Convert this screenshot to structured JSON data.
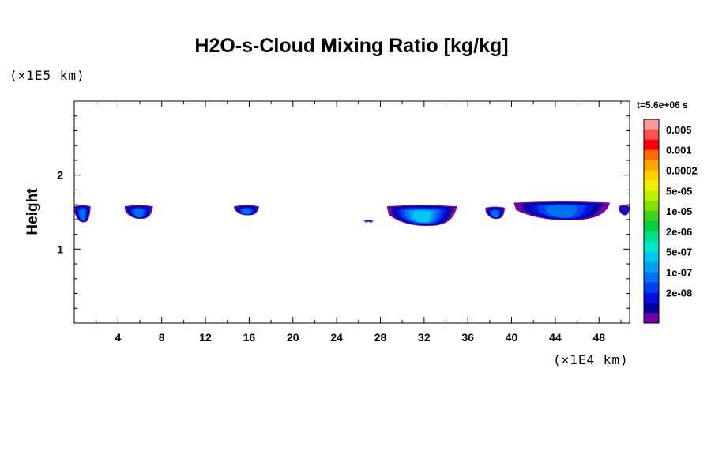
{
  "chart_data": {
    "type": "heatmap",
    "title": "H2O-s-Cloud Mixing Ratio [kg/kg]",
    "ylabel": "Height",
    "xlabel": "",
    "x_unit": "(×1E4 km)",
    "y_unit": "(×1E5 km)",
    "time_label": "t=5.6e+06 s",
    "xlim": [
      0,
      50.8
    ],
    "ylim": [
      0,
      3
    ],
    "x_ticks": [
      4,
      8,
      12,
      16,
      20,
      24,
      28,
      32,
      36,
      40,
      44,
      48
    ],
    "y_ticks": [
      1,
      2
    ],
    "colorbar": {
      "levels": [
        "0.005",
        "0.001",
        "0.0002",
        "5e-05",
        "1e-05",
        "2e-06",
        "5e-07",
        "1e-07",
        "2e-08"
      ],
      "colors": [
        "#ff9a9a",
        "#ff5050",
        "#ff0000",
        "#ff6a00",
        "#ffa500",
        "#ffd000",
        "#f0f000",
        "#c0f000",
        "#80e000",
        "#40d020",
        "#00d040",
        "#00e090",
        "#00e8d0",
        "#00c8f0",
        "#00a0f0",
        "#0070f0",
        "#0040f0",
        "#0010e0",
        "#0000a0",
        "#7000a8"
      ]
    },
    "clouds": [
      {
        "x": [
          0,
          1.5
        ],
        "y": [
          1.35,
          1.6
        ],
        "max_level": "1e-06"
      },
      {
        "x": [
          4.6,
          7.2
        ],
        "y": [
          1.4,
          1.6
        ],
        "max_level": "1e-06"
      },
      {
        "x": [
          14.6,
          16.9
        ],
        "y": [
          1.45,
          1.6
        ],
        "max_level": "1e-06"
      },
      {
        "x": [
          26.4,
          27.4
        ],
        "y": [
          1.37,
          1.4
        ],
        "max_level": "5e-07"
      },
      {
        "x": [
          28.6,
          35
        ],
        "y": [
          1.3,
          1.6
        ],
        "max_level": "2e-06"
      },
      {
        "x": [
          37.6,
          39.4
        ],
        "y": [
          1.4,
          1.58
        ],
        "max_level": "1e-06"
      },
      {
        "x": [
          40.2,
          49
        ],
        "y": [
          1.38,
          1.65
        ],
        "max_level": "1e-06"
      },
      {
        "x": [
          49.8,
          50.8
        ],
        "y": [
          1.45,
          1.6
        ],
        "max_level": "5e-07"
      }
    ]
  }
}
